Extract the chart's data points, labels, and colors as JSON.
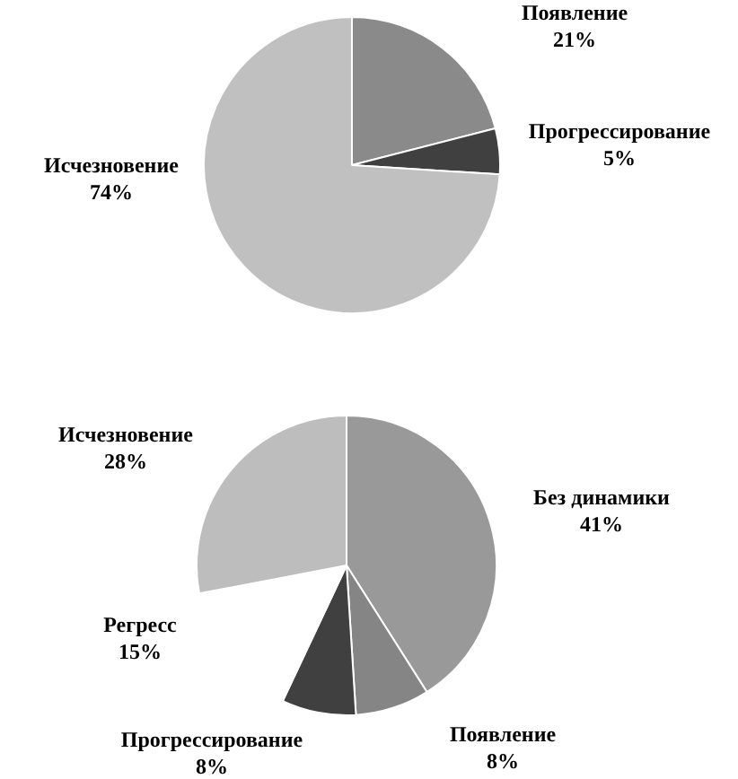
{
  "chart_data": [
    {
      "type": "pie",
      "categories": [
        "Появление",
        "Прогрессирование",
        "Исчезновение"
      ],
      "values": [
        21,
        5,
        74
      ],
      "colors": [
        "#8a8a8a",
        "#404040",
        "#c0c0c0"
      ],
      "value_labels": [
        "21%",
        "5%",
        "74%"
      ],
      "legend": false
    },
    {
      "type": "pie",
      "categories": [
        "Без динамики",
        "Появление",
        "Прогрессирование",
        "Регресс",
        "Исчезновение"
      ],
      "values": [
        41,
        8,
        8,
        15,
        28
      ],
      "colors": [
        "#999999",
        "#858585",
        "#404040",
        "#ffffff",
        "#bdbdbd"
      ],
      "value_labels": [
        "41%",
        "8%",
        "8%",
        "15%",
        "28%"
      ],
      "legend": false
    }
  ]
}
